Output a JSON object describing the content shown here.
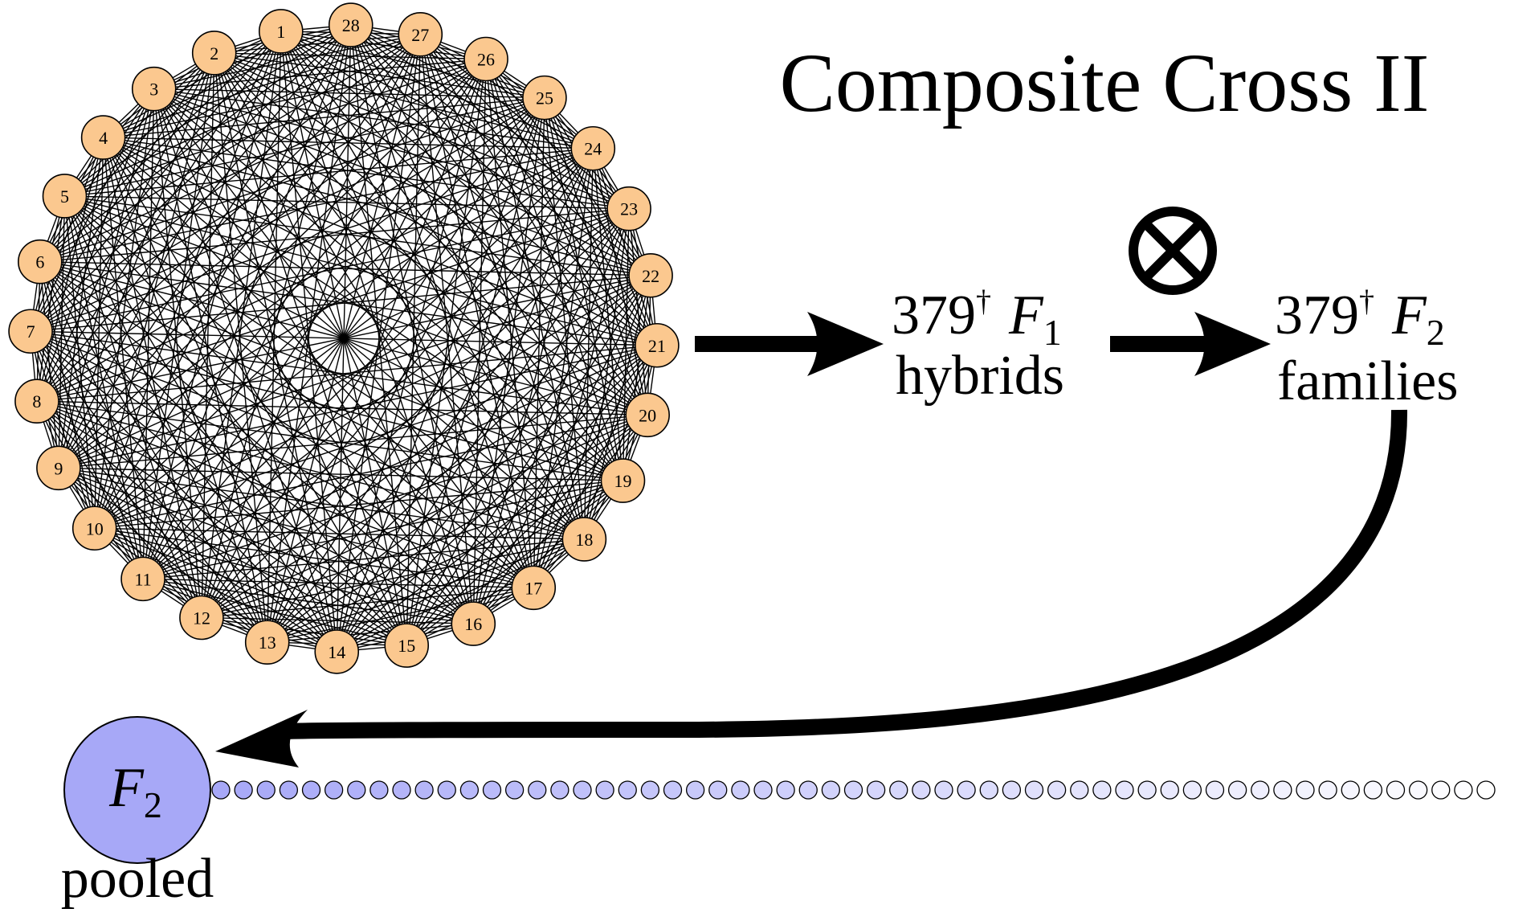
{
  "title": "Composite Cross II",
  "parents": {
    "labels": [
      "1",
      "2",
      "3",
      "4",
      "5",
      "6",
      "7",
      "8",
      "9",
      "10",
      "11",
      "12",
      "13",
      "14",
      "15",
      "16",
      "17",
      "18",
      "19",
      "20",
      "21",
      "22",
      "23",
      "24",
      "25",
      "26",
      "27",
      "28"
    ],
    "fill_color": "#fbc88f"
  },
  "f1_node": {
    "count": "379",
    "dagger": "†",
    "generation": "F",
    "subscript": "1",
    "label": "hybrids"
  },
  "self_symbol": "⊗",
  "f2_node": {
    "count": "379",
    "dagger": "†",
    "generation": "F",
    "subscript": "2",
    "label": "families"
  },
  "pooled_node": {
    "generation": "F",
    "subscript": "2",
    "label": "pooled",
    "fill_color": "#a7a8f7"
  },
  "chain": {
    "bead_count": 57,
    "start_color": "#a7a8f7",
    "end_color": "#ffffff"
  }
}
